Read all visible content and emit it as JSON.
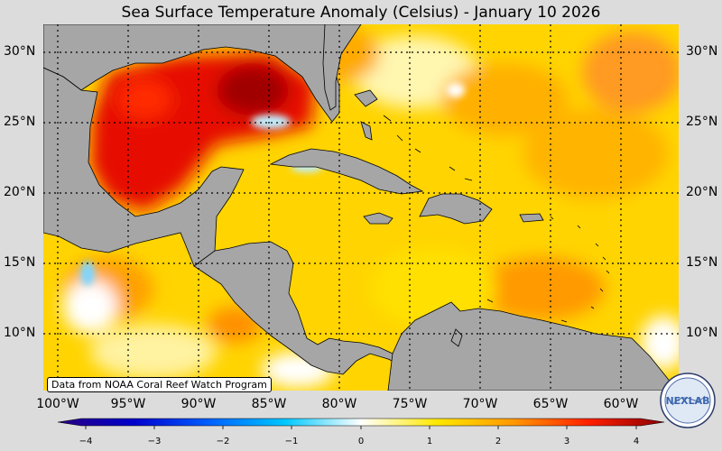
{
  "title": "Sea Surface Temperature Anomaly (Celsius) - January 10 2026",
  "credit": "Data from NOAA Coral Reef Watch Program",
  "logo_text": "NEXLAB",
  "lat_labels": [
    "30°N",
    "25°N",
    "20°N",
    "15°N",
    "10°N"
  ],
  "lon_labels": [
    "100°W",
    "95°W",
    "90°W",
    "85°W",
    "80°W",
    "75°W",
    "70°W",
    "65°W",
    "60°W"
  ],
  "colorbar": {
    "range": [
      -4,
      4
    ],
    "ticks": [
      "−4",
      "−3",
      "−2",
      "−1",
      "0",
      "1",
      "2",
      "3",
      "4"
    ],
    "colors": [
      "#2a0080",
      "#0000cc",
      "#0060ff",
      "#00c8ff",
      "#ffffff",
      "#ffe800",
      "#ff9900",
      "#ff2000",
      "#8a0000"
    ]
  },
  "colors": {
    "land": "#a6a6a6",
    "ocean_base": "#ffd400",
    "hot": "#dd0000",
    "background": "#dcdcdc"
  }
}
